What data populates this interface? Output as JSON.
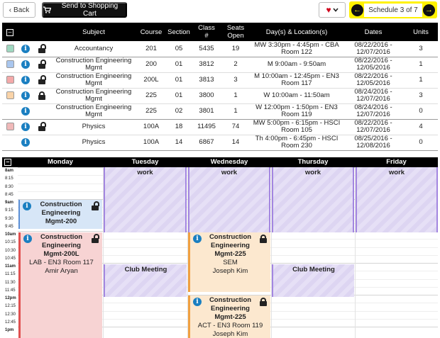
{
  "toolbar": {
    "back_label": "Back",
    "cart_label": "Send to Shopping Cart",
    "schedule_label": "Schedule 3 of 7"
  },
  "table": {
    "headers": {
      "subject": "Subject",
      "course": "Course",
      "section": "Section",
      "class_num_l1": "Class",
      "class_num_l2": "#",
      "seats_l1": "Seats",
      "seats_l2": "Open",
      "days": "Day(s) & Location(s)",
      "dates": "Dates",
      "units": "Units"
    },
    "rows": [
      {
        "subject": "Accountancy",
        "course": "201",
        "section": "05",
        "class_num": "5435",
        "seats": "19",
        "days1": "MW 3:30pm - 4:45pm - CBA",
        "days2": "Room 122",
        "dates1": "08/22/2016 -",
        "dates2": "12/07/2016",
        "units": "3",
        "swatch": "#9fd8c0"
      },
      {
        "subject": "Construction Engineering Mgmt",
        "course": "200",
        "section": "01",
        "class_num": "3812",
        "seats": "2",
        "days1": "M 9:00am - 9:50am",
        "days2": "",
        "dates1": "08/22/2016 -",
        "dates2": "12/05/2016",
        "units": "1",
        "swatch": "#a9c6ee"
      },
      {
        "subject": "Construction Engineering Mgmt",
        "course": "200L",
        "section": "01",
        "class_num": "3813",
        "seats": "3",
        "days1": "M 10:00am - 12:45pm - EN3",
        "days2": "Room 117",
        "dates1": "08/22/2016 -",
        "dates2": "12/05/2016",
        "units": "1",
        "swatch": "#f4a9a9"
      },
      {
        "subject": "Construction Engineering Mgmt",
        "course": "225",
        "section": "01",
        "class_num": "3800",
        "seats": "1",
        "days1": "W 10:00am - 11:50am",
        "days2": "",
        "dates1": "08/24/2016 -",
        "dates2": "12/07/2016",
        "units": "3",
        "swatch": "#f9d3a8"
      },
      {
        "subject": "Construction Engineering Mgmt",
        "course": "225",
        "section": "02",
        "class_num": "3801",
        "seats": "1",
        "days1": "W 12:00pm - 1:50pm - EN3",
        "days2": "Room 119",
        "dates1": "08/24/2016 -",
        "dates2": "12/07/2016",
        "units": "0",
        "swatch": ""
      },
      {
        "subject": "Physics",
        "course": "100A",
        "section": "18",
        "class_num": "11495",
        "seats": "74",
        "days1": "MW 5:00pm - 6:15pm - HSCI",
        "days2": "Room 105",
        "dates1": "08/22/2016 -",
        "dates2": "12/07/2016",
        "units": "4",
        "swatch": "#f0b9b9"
      },
      {
        "subject": "Physics",
        "course": "100A",
        "section": "14",
        "class_num": "6867",
        "seats": "14",
        "days1": "Th 4:00pm - 6:45pm - HSCI",
        "days2": "Room 230",
        "dates1": "08/25/2016 -",
        "dates2": "12/08/2016",
        "units": "0",
        "swatch": ""
      }
    ]
  },
  "calendar": {
    "days": [
      "Monday",
      "Tuesday",
      "Wednesday",
      "Thursday",
      "Friday"
    ],
    "times": [
      "8am",
      "8:15",
      "8:30",
      "8:45",
      "9am",
      "9:15",
      "9:30",
      "9:45",
      "10am",
      "10:15",
      "10:30",
      "10:45",
      "11am",
      "11:15",
      "11:30",
      "11:45",
      "12pm",
      "12:15",
      "12:30",
      "12:45",
      "1pm"
    ],
    "events": {
      "work_title": "work",
      "club_title": "Club Meeting",
      "cem200": {
        "l1": "Construction",
        "l2": "Engineering",
        "l3": "Mgmt-200"
      },
      "cem200l": {
        "l1": "Construction",
        "l2": "Engineering",
        "l3": "Mgmt-200L",
        "l4": "LAB - EN3 Room 117",
        "l5": "Amir Aryan"
      },
      "cem225a": {
        "l1": "Construction",
        "l2": "Engineering",
        "l3": "Mgmt-225",
        "l4": "SEM",
        "l5": "Joseph Kim"
      },
      "cem225b": {
        "l1": "Construction",
        "l2": "Engineering",
        "l3": "Mgmt-225",
        "l4": "ACT - EN3 Room 119",
        "l5": "Joseph Kim"
      }
    }
  },
  "icons": {
    "info": "i",
    "back": "‹",
    "nav_prev": "←",
    "nav_next": "→"
  },
  "colors": {
    "accent_yellow": "#fff200",
    "info_blue": "#1a7fc1",
    "work_purple": "#a386e0"
  }
}
